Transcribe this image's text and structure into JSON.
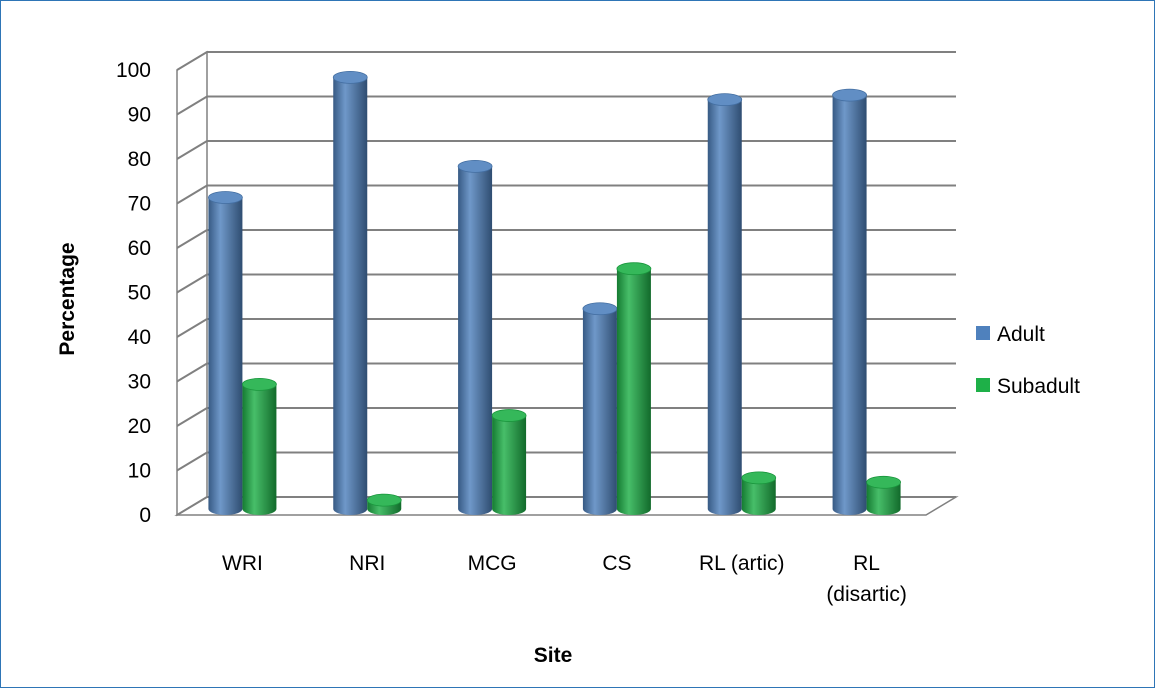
{
  "colors": {
    "frame": "#2e75b6",
    "gridline": "#808080",
    "wall": "#ffffff"
  },
  "chart_data": {
    "type": "bar",
    "style": "3d-cylinder",
    "title": "",
    "xlabel": "Site",
    "ylabel": "Percentage",
    "ylim": [
      0,
      100
    ],
    "yticks": [
      0,
      10,
      20,
      30,
      40,
      50,
      60,
      70,
      80,
      90,
      100
    ],
    "grid": true,
    "legend_position": "right",
    "categories": [
      [
        "WRI"
      ],
      [
        "NRI"
      ],
      [
        "MCG"
      ],
      [
        "CS"
      ],
      [
        "RL (artic)"
      ],
      [
        "RL",
        "(disartic)"
      ]
    ],
    "series": [
      {
        "name": "Adult",
        "color": "#4f81bd",
        "values": [
          70,
          97,
          77,
          45,
          92,
          93
        ]
      },
      {
        "name": "Subadult",
        "color": "#1eb048",
        "values": [
          28,
          2,
          21,
          54,
          7,
          6
        ]
      }
    ]
  }
}
